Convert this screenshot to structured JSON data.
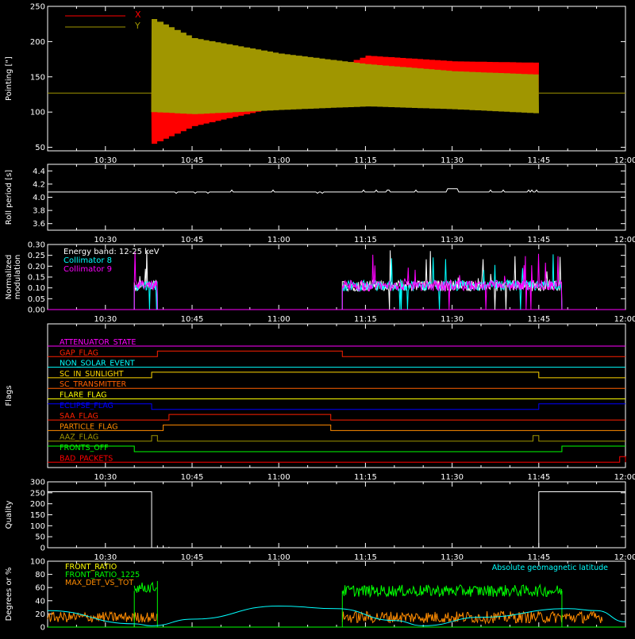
{
  "time_axis": {
    "start": "10:20",
    "end": "12:00",
    "ticks": [
      "10:30",
      "10:45",
      "11:00",
      "11:15",
      "11:30",
      "11:45",
      "12:00"
    ]
  },
  "colors": {
    "background": "#000000",
    "axes": "#ffffff",
    "x": "#ff0000",
    "y": "#a09600",
    "cyan": "#00ffff",
    "magenta": "#ff00ff",
    "green": "#00ff00",
    "orange": "#ff8c00"
  },
  "chart_data": [
    {
      "type": "line",
      "ylabel": "Pointing [\"]",
      "ylim": [
        45,
        250
      ],
      "yticks": [
        50,
        100,
        150,
        200,
        250
      ],
      "series": [
        {
          "name": "X",
          "color": "#ff0000",
          "note_values": {
            "baseline": 127,
            "active_start": "10:38",
            "active_end": "11:45"
          },
          "envelope": [
            {
              "t": "10:38",
              "lo": 55,
              "hi": 127
            },
            {
              "t": "10:45",
              "lo": 80,
              "hi": 127
            },
            {
              "t": "11:00",
              "lo": 108,
              "hi": 135
            },
            {
              "t": "11:15",
              "lo": 122,
              "hi": 180
            },
            {
              "t": "11:30",
              "lo": 125,
              "hi": 172
            },
            {
              "t": "11:45",
              "lo": 122,
              "hi": 170
            }
          ]
        },
        {
          "name": "Y",
          "color": "#a09600",
          "envelope": [
            {
              "t": "10:38",
              "lo": 100,
              "hi": 232
            },
            {
              "t": "10:45",
              "lo": 97,
              "hi": 205
            },
            {
              "t": "11:00",
              "lo": 103,
              "hi": 183
            },
            {
              "t": "11:15",
              "lo": 108,
              "hi": 168
            },
            {
              "t": "11:30",
              "lo": 104,
              "hi": 158
            },
            {
              "t": "11:45",
              "lo": 98,
              "hi": 153
            }
          ]
        }
      ]
    },
    {
      "type": "line",
      "ylabel": "Roll period [s]",
      "ylim": [
        3.5,
        4.5
      ],
      "yticks": [
        "3.6",
        "3.8",
        "4.0",
        "4.2",
        "4.4"
      ],
      "series": [
        {
          "values_note": "constant",
          "value": 4.08
        }
      ]
    },
    {
      "type": "line",
      "ylabel_lines": [
        "Normalized",
        "modulation"
      ],
      "ylim": [
        0,
        0.3
      ],
      "yticks": [
        "0.00",
        "0.05",
        "0.10",
        "0.15",
        "0.20",
        "0.25",
        "0.30"
      ],
      "legend": [
        "Energy band: 12-25 keV",
        "Collimator 8",
        "Collimator 9"
      ],
      "segments": [
        {
          "start": "10:35",
          "end": "10:39",
          "level": 0.1
        },
        {
          "start": "11:11",
          "end": "11:49",
          "level": 0.1
        }
      ]
    },
    {
      "type": "line",
      "ylabel": "Flags",
      "flags": [
        {
          "name": "ATTENUATOR_STATE",
          "color": "#ff00ff",
          "changes": []
        },
        {
          "name": "GAP_FLAG",
          "color": "#ff2000",
          "changes": [
            [
              "10:39",
              "11:11"
            ]
          ]
        },
        {
          "name": "NON_SOLAR_EVENT",
          "color": "#00ffff",
          "changes": []
        },
        {
          "name": "SC_IN_SUNLIGHT",
          "color": "#ffd700",
          "changes": [
            [
              "10:38",
              "11:45"
            ]
          ]
        },
        {
          "name": "SC_TRANSMITTER",
          "color": "#ff6000",
          "changes": []
        },
        {
          "name": "FLARE_FLAG",
          "color": "#ffff00",
          "changes": []
        },
        {
          "name": "ECLIPSE_FLAG",
          "color": "#0000ff",
          "changes": [
            [
              "10:38",
              "11:45"
            ]
          ],
          "inverted": true
        },
        {
          "name": "SAA_FLAG",
          "color": "#ff2000",
          "changes": [
            [
              "10:41",
              "11:09"
            ]
          ]
        },
        {
          "name": "PARTICLE_FLAG",
          "color": "#ff8c00",
          "changes": [
            [
              "10:40",
              "11:09"
            ]
          ]
        },
        {
          "name": "AAZ_FLAG",
          "color": "#a09600",
          "changes": [
            [
              "10:38",
              "10:39"
            ],
            [
              "11:44",
              "11:45"
            ]
          ]
        },
        {
          "name": "FRONTS_OFF",
          "color": "#00ff00",
          "changes": [
            [
              "10:35",
              "11:49"
            ]
          ],
          "inverted": true
        },
        {
          "name": "BAD_PACKETS",
          "color": "#ff0000",
          "changes": [
            [
              "11:59",
              "12:00"
            ]
          ]
        }
      ]
    },
    {
      "type": "line",
      "ylabel": "Quality",
      "ylim": [
        0,
        300
      ],
      "yticks": [
        "0",
        "50",
        "100",
        "150",
        "200",
        "250",
        "300"
      ],
      "series": [
        {
          "segments": [
            {
              "start": "10:20",
              "end": "10:38",
              "value": 255
            },
            {
              "start": "10:38",
              "end": "11:45",
              "value": 0
            },
            {
              "start": "11:45",
              "end": "12:00",
              "value": 255
            }
          ]
        }
      ]
    },
    {
      "type": "line",
      "ylabel": "Degrees or %",
      "ylim": [
        0,
        100
      ],
      "yticks": [
        "0",
        "20",
        "40",
        "60",
        "80",
        "100"
      ],
      "legend": [
        "FRONT_RATIO",
        "FRONT_RATIO_1225",
        "MAX_DET_VS_TOT"
      ],
      "annotation": "Absolute geomagnetic latitude",
      "series": [
        {
          "name": "FRONT_RATIO",
          "color": "#ffff00"
        },
        {
          "name": "FRONT_RATIO_1225",
          "color": "#00ff00",
          "level": 55
        },
        {
          "name": "MAX_DET_VS_TOT",
          "color": "#ff8c00",
          "level": 15
        },
        {
          "name": "Absolute geomagnetic latitude",
          "color": "#00ffff",
          "points": [
            [
              "10:20",
              25
            ],
            [
              "10:35",
              5
            ],
            [
              "10:38",
              2
            ],
            [
              "10:45",
              12
            ],
            [
              "11:00",
              32
            ],
            [
              "11:10",
              28
            ],
            [
              "11:20",
              10
            ],
            [
              "11:25",
              2
            ],
            [
              "11:35",
              15
            ],
            [
              "11:50",
              28
            ],
            [
              "11:55",
              25
            ],
            [
              "12:00",
              8
            ]
          ]
        }
      ]
    }
  ]
}
